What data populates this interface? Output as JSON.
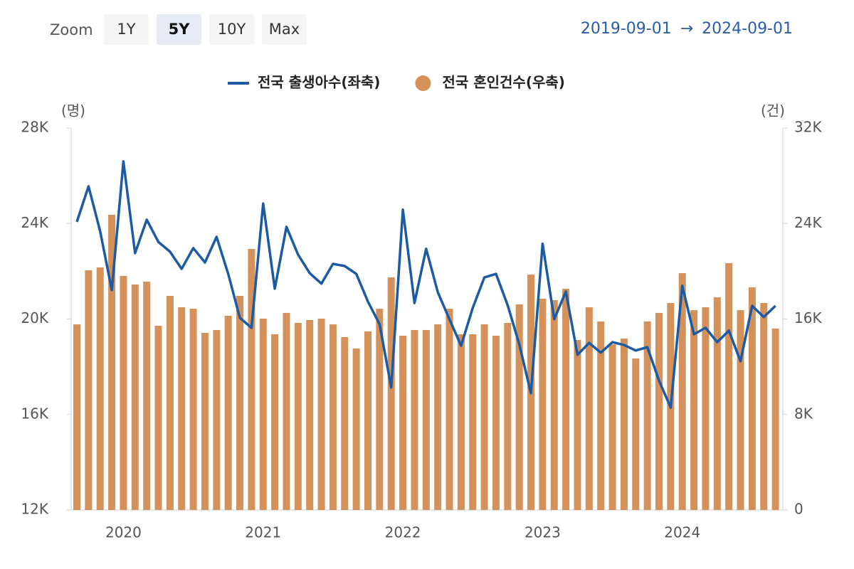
{
  "zoom": {
    "label": "Zoom",
    "options": [
      "1Y",
      "5Y",
      "10Y",
      "Max"
    ],
    "selected": 1
  },
  "date_range": {
    "start": "2019-09-01",
    "arrow": "→",
    "end": "2024-09-01"
  },
  "chart_data": {
    "type": "combo",
    "y_unit": "(명)",
    "y2_unit": "(건)",
    "categories": [
      null,
      null,
      null,
      null,
      "2020",
      null,
      null,
      null,
      null,
      null,
      null,
      null,
      null,
      null,
      null,
      null,
      "2021",
      null,
      null,
      null,
      null,
      null,
      null,
      null,
      null,
      null,
      null,
      null,
      "2022",
      null,
      null,
      null,
      null,
      null,
      null,
      null,
      null,
      null,
      null,
      null,
      "2023",
      null,
      null,
      null,
      null,
      null,
      null,
      null,
      null,
      null,
      null,
      null,
      "2024",
      null,
      null,
      null,
      null,
      null,
      null,
      null,
      null
    ],
    "ylim": [
      12000,
      28000
    ],
    "yticks": [
      {
        "value": 12000,
        "label": "12K"
      },
      {
        "value": 16000,
        "label": "16K"
      },
      {
        "value": 20000,
        "label": "20K"
      },
      {
        "value": 24000,
        "label": "24K"
      },
      {
        "value": 28000,
        "label": "28K"
      }
    ],
    "y2lim": [
      0,
      32000
    ],
    "y2ticks": [
      0,
      {
        "value": 8000,
        "label": "8K"
      },
      {
        "value": 16000,
        "label": "16K"
      },
      {
        "value": 24000,
        "label": "24K"
      },
      {
        "value": 32000,
        "label": "32K"
      }
    ],
    "series": [
      {
        "name": "전국 출생아수(좌축)",
        "type": "line",
        "color": "#1c5ba3",
        "values": [
          24070,
          25560,
          23680,
          21210,
          26600,
          22760,
          24160,
          23230,
          22820,
          22100,
          22970,
          22370,
          23440,
          21890,
          20050,
          19630,
          24840,
          21270,
          23860,
          22700,
          21920,
          21480,
          22310,
          22220,
          21890,
          20730,
          19780,
          17130,
          24580,
          20670,
          22940,
          21120,
          19990,
          18880,
          20460,
          21740,
          21890,
          20580,
          18940,
          16890,
          23150,
          19990,
          21150,
          18500,
          19000,
          18590,
          19030,
          18910,
          18680,
          18820,
          17420,
          16290,
          21390,
          19360,
          19630,
          19030,
          19510,
          18230,
          20550,
          20080,
          20550
        ]
      },
      {
        "name": "전국 혼인건수(우축)",
        "type": "bar",
        "axis": "y2",
        "color": "#d4925a",
        "values": [
          15550,
          20080,
          20320,
          24730,
          19610,
          18890,
          19130,
          15430,
          17940,
          16980,
          16860,
          14840,
          15080,
          16270,
          17940,
          21870,
          16030,
          14720,
          16510,
          15670,
          15910,
          16030,
          15550,
          14480,
          13530,
          14960,
          16860,
          19490,
          14600,
          15080,
          15080,
          15550,
          16860,
          14720,
          14720,
          15550,
          14600,
          15670,
          17220,
          19720,
          17700,
          17580,
          18530,
          14240,
          16980,
          15790,
          13880,
          14360,
          12690,
          15790,
          16510,
          17340,
          19840,
          16740,
          16980,
          17820,
          20680,
          16740,
          18650,
          17340,
          15200
        ]
      }
    ]
  }
}
